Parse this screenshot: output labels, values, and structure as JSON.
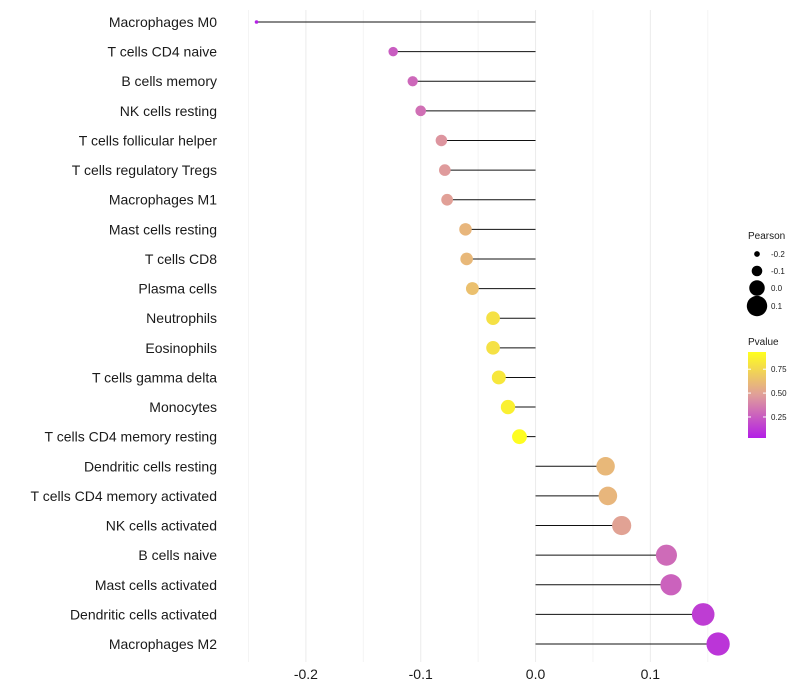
{
  "chart_data": {
    "type": "lollipop",
    "title": "",
    "xlabel": "",
    "ylabel": "",
    "xlim": [
      -0.26,
      0.165
    ],
    "x_ticks": [
      -0.2,
      -0.1,
      0.0,
      0.1
    ],
    "x_tick_labels": [
      "-0.2",
      "-0.1",
      "0.0",
      "0.1"
    ],
    "grid": true,
    "categories": [
      "Macrophages M0",
      "T cells CD4 naive",
      "B cells memory",
      "NK cells resting",
      "T cells follicular helper",
      "T cells regulatory  Tregs ",
      "Macrophages M1",
      "Mast cells resting",
      "T cells CD8",
      "Plasma cells",
      "Neutrophils",
      "Eosinophils",
      "T cells gamma delta",
      "Monocytes",
      "T cells CD4 memory resting",
      "Dendritic cells resting",
      "T cells CD4 memory activated",
      "NK cells activated",
      "B cells naive",
      "Mast cells activated",
      "Dendritic cells activated",
      "Macrophages M2"
    ],
    "pearson": [
      -0.243,
      -0.124,
      -0.107,
      -0.1,
      -0.082,
      -0.079,
      -0.077,
      -0.061,
      -0.06,
      -0.055,
      -0.037,
      -0.037,
      -0.032,
      -0.024,
      -0.014,
      0.061,
      0.063,
      0.075,
      0.114,
      0.118,
      0.146,
      0.159
    ],
    "pvalue": [
      0.04,
      0.25,
      0.29,
      0.32,
      0.45,
      0.47,
      0.49,
      0.59,
      0.6,
      0.64,
      0.79,
      0.79,
      0.82,
      0.86,
      0.92,
      0.6,
      0.59,
      0.5,
      0.3,
      0.27,
      0.14,
      0.11
    ],
    "legend_size": {
      "title": "Pearson",
      "values": [
        -0.2,
        -0.1,
        0.0,
        0.1
      ],
      "labels": [
        "-0.2",
        "-0.1",
        "0.0",
        "0.1"
      ]
    },
    "legend_color": {
      "title": "Pvalue",
      "range": [
        0.03,
        0.93
      ],
      "ticks": [
        0.75,
        0.5,
        0.25
      ],
      "tick_labels": [
        "0.75",
        "0.50",
        "0.25"
      ],
      "low_color": "#b31ee6",
      "mid_color": "#e09e9a",
      "high_color": "#ffff1e"
    },
    "legend_position": "right"
  }
}
